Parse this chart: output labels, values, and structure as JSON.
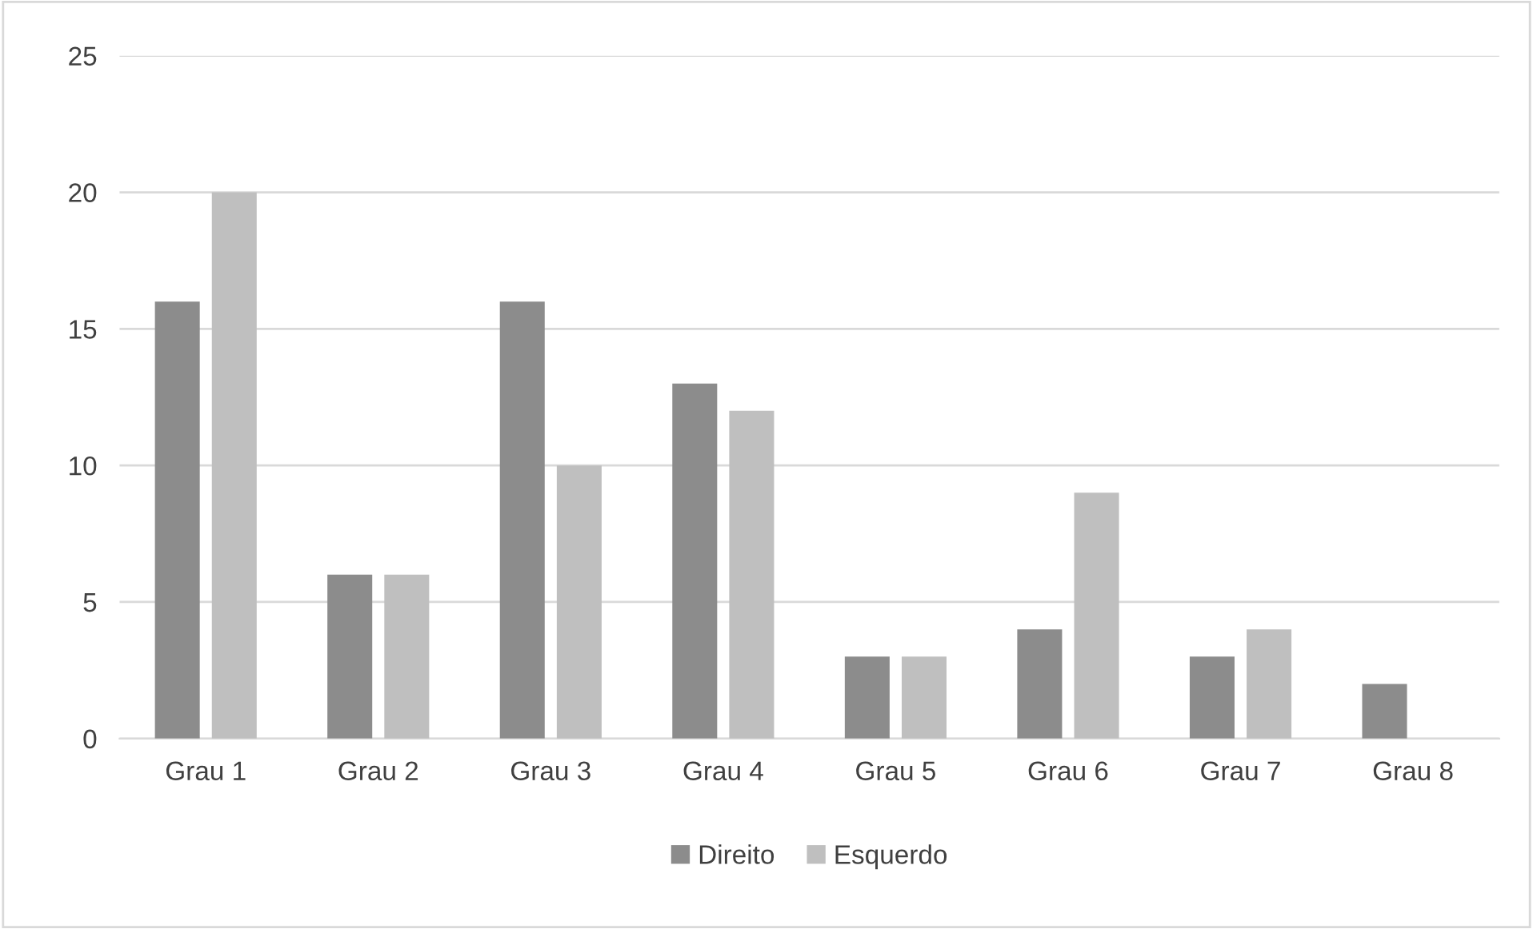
{
  "chart_data": {
    "type": "bar",
    "categories": [
      "Grau 1",
      "Grau 2",
      "Grau 3",
      "Grau 4",
      "Grau 5",
      "Grau 6",
      "Grau 7",
      "Grau 8"
    ],
    "series": [
      {
        "name": "Direito",
        "color": "#8c8c8c",
        "values": [
          16,
          6,
          16,
          13,
          3,
          4,
          3,
          2
        ]
      },
      {
        "name": "Esquerdo",
        "color": "#bfbfbf",
        "values": [
          20,
          6,
          10,
          12,
          3,
          9,
          4,
          0
        ]
      }
    ],
    "ylim": [
      0,
      25
    ],
    "yticks": [
      0,
      5,
      10,
      15,
      20,
      25
    ],
    "grid": "y",
    "legend": "bottom"
  }
}
